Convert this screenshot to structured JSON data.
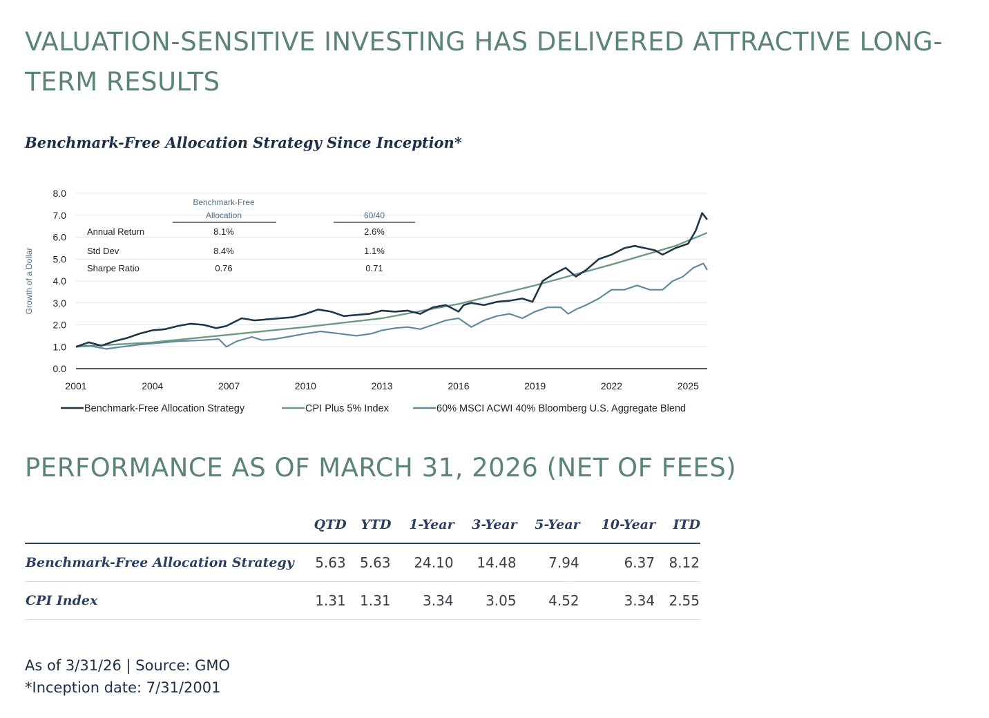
{
  "page_title": "VALUATION-SENSITIVE INVESTING HAS DELIVERED ATTRACTIVE LONG-TERM RESULTS",
  "chart_section_title": "Benchmark-Free Allocation Strategy Since Inception*",
  "chart_data": {
    "type": "line",
    "ylabel": "Growth of a Dollar",
    "ylim": [
      0,
      8
    ],
    "yticks": [
      "0.0",
      "1.0",
      "2.0",
      "3.0",
      "4.0",
      "5.0",
      "6.0",
      "7.0",
      "8.0"
    ],
    "xlim": [
      2001,
      2025.75
    ],
    "xticks": [
      "2001",
      "2004",
      "2007",
      "2010",
      "2013",
      "2016",
      "2019",
      "2022",
      "2025"
    ],
    "grid": true,
    "legend_position": "bottom",
    "colors": {
      "Benchmark-Free Allocation Strategy": "#1f3548",
      "CPI Plus 5% Index": "#6e9a80",
      "60% MSCI ACWI 40% Bloomberg U.S. Aggregate Blend": "#5f8a9e"
    },
    "series": [
      {
        "name": "Benchmark-Free Allocation Strategy",
        "x": [
          2001.0,
          2001.5,
          2002.0,
          2002.5,
          2003.0,
          2003.5,
          2004.0,
          2004.5,
          2005.0,
          2005.5,
          2006.0,
          2006.5,
          2006.9,
          2007.5,
          2008.0,
          2008.5,
          2009.0,
          2009.5,
          2010.0,
          2010.5,
          2011.0,
          2011.5,
          2012.0,
          2012.5,
          2013.0,
          2013.5,
          2014.0,
          2014.5,
          2015.0,
          2015.5,
          2016.0,
          2016.2,
          2016.5,
          2017.0,
          2017.5,
          2018.0,
          2018.5,
          2018.9,
          2019.3,
          2019.7,
          2020.2,
          2020.6,
          2021.0,
          2021.5,
          2022.0,
          2022.5,
          2022.9,
          2023.3,
          2023.7,
          2024.0,
          2024.5,
          2025.0,
          2025.3,
          2025.55,
          2025.75
        ],
        "values": [
          1.0,
          1.2,
          1.05,
          1.25,
          1.4,
          1.6,
          1.75,
          1.8,
          1.95,
          2.05,
          2.0,
          1.85,
          1.95,
          2.3,
          2.2,
          2.25,
          2.3,
          2.35,
          2.5,
          2.7,
          2.6,
          2.4,
          2.45,
          2.5,
          2.65,
          2.6,
          2.65,
          2.5,
          2.8,
          2.9,
          2.6,
          2.9,
          3.0,
          2.9,
          3.05,
          3.1,
          3.2,
          3.05,
          4.0,
          4.3,
          4.6,
          4.2,
          4.5,
          5.0,
          5.2,
          5.5,
          5.6,
          5.5,
          5.4,
          5.2,
          5.5,
          5.7,
          6.3,
          7.1,
          6.8
        ]
      },
      {
        "name": "CPI Plus 5% Index",
        "x": [
          2001.0,
          2004.0,
          2007.0,
          2010.0,
          2013.0,
          2016.0,
          2019.0,
          2022.0,
          2024.5,
          2025.75
        ],
        "values": [
          1.0,
          1.2,
          1.55,
          1.9,
          2.3,
          2.95,
          3.8,
          4.75,
          5.6,
          6.2
        ]
      },
      {
        "name": "60% MSCI ACWI 40% Bloomberg U.S. Aggregate Blend",
        "x": [
          2001.0,
          2001.5,
          2002.2,
          2002.8,
          2003.5,
          2004.0,
          2004.5,
          2005.0,
          2006.0,
          2006.6,
          2006.9,
          2007.3,
          2007.9,
          2008.3,
          2008.8,
          2009.3,
          2010.0,
          2010.6,
          2011.3,
          2012.0,
          2012.6,
          2013.0,
          2013.5,
          2014.0,
          2014.5,
          2015.0,
          2015.5,
          2016.0,
          2016.5,
          2017.0,
          2017.5,
          2018.0,
          2018.5,
          2019.0,
          2019.5,
          2020.0,
          2020.3,
          2020.6,
          2021.0,
          2021.5,
          2022.0,
          2022.5,
          2023.0,
          2023.5,
          2024.0,
          2024.4,
          2024.8,
          2025.2,
          2025.6,
          2025.75
        ],
        "values": [
          1.0,
          1.05,
          0.9,
          1.0,
          1.1,
          1.15,
          1.2,
          1.25,
          1.3,
          1.35,
          1.0,
          1.25,
          1.45,
          1.3,
          1.35,
          1.45,
          1.6,
          1.7,
          1.6,
          1.5,
          1.6,
          1.75,
          1.85,
          1.9,
          1.8,
          2.0,
          2.2,
          2.3,
          1.9,
          2.2,
          2.4,
          2.5,
          2.3,
          2.6,
          2.8,
          2.8,
          2.5,
          2.7,
          2.9,
          3.2,
          3.6,
          3.6,
          3.8,
          3.6,
          3.6,
          4.0,
          4.2,
          4.6,
          4.8,
          4.5
        ]
      }
    ],
    "stats_table": {
      "columns": [
        "Benchmark-Free Allocation",
        "60/40"
      ],
      "rows": [
        {
          "label": "Annual Return",
          "values": [
            "8.1%",
            "2.6%"
          ]
        },
        {
          "label": "Std Dev",
          "values": [
            "8.4%",
            "1.1%"
          ]
        },
        {
          "label": "Sharpe Ratio",
          "values": [
            "0.76",
            "0.71"
          ]
        }
      ]
    }
  },
  "performance": {
    "title": "PERFORMANCE AS OF MARCH 31, 2026 (NET OF FEES)",
    "columns": [
      "QTD",
      "YTD",
      "1-Year",
      "3-Year",
      "5-Year",
      "10-Year",
      "ITD"
    ],
    "rows": [
      {
        "name": "Benchmark-Free Allocation Strategy",
        "values": [
          "5.63",
          "5.63",
          "24.10",
          "14.48",
          "7.94",
          "6.37",
          "8.12"
        ]
      },
      {
        "name": "CPI Index",
        "values": [
          "1.31",
          "1.31",
          "3.34",
          "3.05",
          "4.52",
          "3.34",
          "2.55"
        ]
      }
    ]
  },
  "footnotes": {
    "source": "As of 3/31/26 | Source: GMO",
    "inception": "*Inception date: 7/31/2001"
  }
}
